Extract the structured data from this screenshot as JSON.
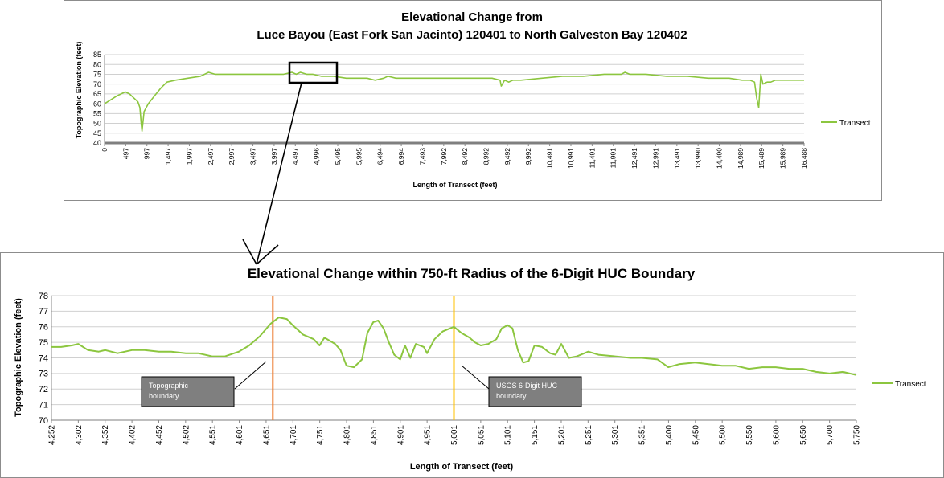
{
  "chart_data": [
    {
      "type": "line",
      "title_lines": [
        "Elevational Change from",
        "Luce Bayou (East Fork San Jacinto) 120401 to North Galveston Bay 120402"
      ],
      "xlabel": "Length of Transect (feet)",
      "ylabel": "Topographic Elevation (feet)",
      "ylim": [
        40,
        85
      ],
      "yticks": [
        40,
        45,
        50,
        55,
        60,
        65,
        70,
        75,
        80,
        85
      ],
      "xlim": [
        0,
        16788
      ],
      "xtick_labels": [
        "0",
        "497",
        "997",
        "1,497",
        "1,997",
        "2,497",
        "2,997",
        "3,497",
        "3,997",
        "4,497",
        "4,996",
        "5,495",
        "5,995",
        "6,494",
        "6,994",
        "7,493",
        "7,992",
        "8,492",
        "8,992",
        "9,492",
        "9,992",
        "10,491",
        "10,991",
        "11,491",
        "11,991",
        "12,491",
        "12,991",
        "13,491",
        "13,990",
        "14,490",
        "14,989",
        "15,489",
        "15,989",
        "16,488"
      ],
      "grid": true,
      "legend_position": "right",
      "series": [
        {
          "name": "Transect",
          "color": "#8cc63f",
          "x": [
            0,
            150,
            300,
            497,
            600,
            700,
            800,
            850,
            880,
            900,
            950,
            1050,
            1200,
            1350,
            1497,
            1700,
            1997,
            2300,
            2497,
            2650,
            2800,
            2997,
            3200,
            3497,
            3800,
            3997,
            4300,
            4497,
            4600,
            4700,
            4850,
            4996,
            5200,
            5495,
            5800,
            5995,
            6300,
            6494,
            6700,
            6800,
            6994,
            7300,
            7493,
            8000,
            8492,
            8992,
            9300,
            9492,
            9520,
            9600,
            9700,
            9800,
            9992,
            10491,
            10991,
            11491,
            11991,
            12400,
            12491,
            12600,
            12991,
            13491,
            13990,
            14490,
            14989,
            15300,
            15489,
            15600,
            15650,
            15700,
            15750,
            15800,
            15900,
            15989,
            16100,
            16300,
            16488,
            16788
          ],
          "y": [
            60,
            62,
            64,
            66,
            65,
            63,
            61,
            58,
            50,
            46,
            56,
            60,
            64,
            68,
            71,
            72,
            73,
            74,
            76,
            75,
            75,
            75,
            75,
            75,
            75,
            75,
            75,
            76,
            75,
            76,
            75,
            75,
            74,
            74,
            73,
            73,
            73,
            72,
            73,
            74,
            73,
            73,
            73,
            73,
            73,
            73,
            73,
            72,
            69,
            72,
            71,
            72,
            72,
            73,
            74,
            74,
            75,
            75,
            76,
            75,
            75,
            74,
            74,
            73,
            73,
            72,
            72,
            71,
            63,
            58,
            75,
            70,
            71,
            71,
            72,
            72,
            72,
            72
          ]
        }
      ]
    },
    {
      "type": "line",
      "title": "Elevational Change within 750-ft Radius of the 6-Digit HUC Boundary",
      "xlabel": "Length of Transect (feet)",
      "ylabel": "Topographic Elevation (feet)",
      "ylim": [
        70,
        78
      ],
      "yticks": [
        70,
        71,
        72,
        73,
        74,
        75,
        76,
        77,
        78
      ],
      "xlim": [
        4252,
        5750
      ],
      "xtick_labels": [
        "4,252",
        "4,302",
        "4,352",
        "4,402",
        "4,452",
        "4,502",
        "4,551",
        "4,601",
        "4,651",
        "4,701",
        "4,751",
        "4,801",
        "4,851",
        "4,901",
        "4,951",
        "5,001",
        "5,051",
        "5,101",
        "5,151",
        "5,201",
        "5,251",
        "5,301",
        "5,351",
        "5,400",
        "5,450",
        "5,500",
        "5,550",
        "5,600",
        "5,650",
        "5,700",
        "5,750"
      ],
      "grid": true,
      "legend_position": "right",
      "series": [
        {
          "name": "Transect",
          "color": "#8cc63f",
          "x": [
            4252,
            4270,
            4290,
            4302,
            4320,
            4340,
            4352,
            4375,
            4402,
            4425,
            4452,
            4475,
            4502,
            4525,
            4551,
            4575,
            4601,
            4620,
            4640,
            4660,
            4675,
            4690,
            4701,
            4720,
            4740,
            4751,
            4760,
            4780,
            4790,
            4801,
            4815,
            4830,
            4840,
            4851,
            4860,
            4870,
            4880,
            4890,
            4901,
            4910,
            4920,
            4930,
            4945,
            4951,
            4965,
            4980,
            5001,
            5015,
            5030,
            5040,
            5051,
            5065,
            5080,
            5090,
            5101,
            5110,
            5120,
            5130,
            5140,
            5151,
            5165,
            5180,
            5190,
            5201,
            5215,
            5230,
            5251,
            5270,
            5301,
            5330,
            5351,
            5380,
            5400,
            5420,
            5450,
            5475,
            5500,
            5525,
            5550,
            5575,
            5600,
            5625,
            5650,
            5675,
            5700,
            5725,
            5750
          ],
          "y": [
            74.7,
            74.7,
            74.8,
            74.9,
            74.5,
            74.4,
            74.5,
            74.3,
            74.5,
            74.5,
            74.4,
            74.4,
            74.3,
            74.3,
            74.1,
            74.1,
            74.4,
            74.8,
            75.4,
            76.2,
            76.6,
            76.5,
            76.1,
            75.5,
            75.2,
            74.8,
            75.3,
            74.9,
            74.5,
            73.5,
            73.4,
            73.9,
            75.6,
            76.3,
            76.4,
            75.9,
            75.0,
            74.2,
            73.9,
            74.8,
            74.0,
            74.9,
            74.7,
            74.3,
            75.2,
            75.7,
            76.0,
            75.6,
            75.3,
            75.0,
            74.8,
            74.9,
            75.2,
            75.9,
            76.1,
            75.9,
            74.5,
            73.7,
            73.8,
            74.8,
            74.7,
            74.3,
            74.2,
            74.9,
            74.0,
            74.1,
            74.4,
            74.2,
            74.1,
            74.0,
            74.0,
            73.9,
            73.4,
            73.6,
            73.7,
            73.6,
            73.5,
            73.5,
            73.3,
            73.4,
            73.4,
            73.3,
            73.3,
            73.1,
            73.0,
            73.1,
            72.9
          ]
        }
      ],
      "vertical_lines": [
        {
          "x": 4664,
          "color": "#ed7d31"
        },
        {
          "x": 5001,
          "color": "#ffc000"
        }
      ],
      "annotations": [
        {
          "text_lines": [
            "Topographic",
            "boundary"
          ]
        },
        {
          "text_lines": [
            "USGS 6-Digit HUC",
            "boundary"
          ]
        }
      ]
    }
  ]
}
